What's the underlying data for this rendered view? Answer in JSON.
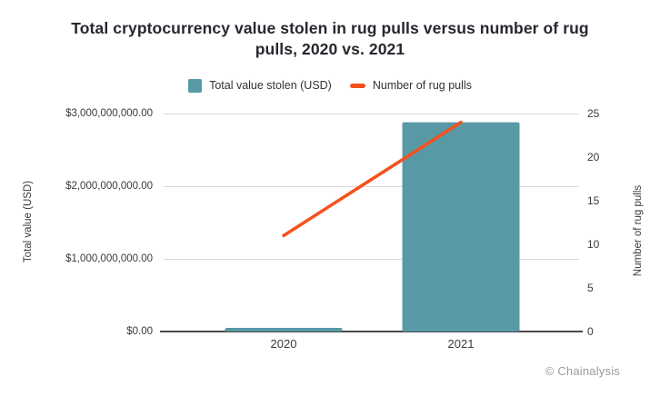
{
  "title": "Total cryptocurrency value stolen in rug pulls versus number of rug pulls, 2020 vs. 2021",
  "title_lines": [
    "Total cryptocurrency value stolen in rug pulls versus number of rug",
    "pulls, 2020 vs. 2021"
  ],
  "legend": {
    "items": [
      {
        "label": "Total value stolen (USD)",
        "marker": "square",
        "color": "#5899a6"
      },
      {
        "label": "Number of rug pulls",
        "marker": "dash",
        "color": "#f4511e"
      }
    ]
  },
  "chart_data": {
    "type": "bar+line",
    "title": "Total cryptocurrency value stolen in rug pulls versus number of rug pulls, 2020 vs. 2021",
    "categories": [
      "2020",
      "2021"
    ],
    "series": [
      {
        "name": "Total value stolen (USD)",
        "type": "bar",
        "axis": "left",
        "color": "#5899a6",
        "values": [
          50000000,
          2880000000
        ]
      },
      {
        "name": "Number of rug pulls",
        "type": "line",
        "axis": "right",
        "color": "#f4511e",
        "values": [
          11,
          24
        ]
      }
    ],
    "y_left": {
      "label": "Total value (USD)",
      "range": [
        0,
        3000000000
      ],
      "ticks": [
        "$3,000,000,000.00",
        "$2,000,000,000.00",
        "$1,000,000,000.00",
        "$0.00"
      ],
      "tick_values": [
        3000000000,
        2000000000,
        1000000000,
        0
      ]
    },
    "y_right": {
      "label": "Number of rug pulls",
      "range": [
        0,
        25
      ],
      "ticks": [
        "25",
        "20",
        "15",
        "10",
        "5",
        "0"
      ],
      "tick_values": [
        25,
        20,
        15,
        10,
        5,
        0
      ]
    },
    "grid": true,
    "legend_position": "top",
    "colors": {
      "bar": "#5899a6",
      "line": "#f4511e",
      "gridline": "#d9d9d9",
      "axis_line": "#4a4a4a",
      "title_text": "#27272f",
      "tick_text": "#3a3a3a",
      "credit_text": "#9b9b9b"
    }
  },
  "footer": {
    "credit": "© Chainalysis"
  }
}
